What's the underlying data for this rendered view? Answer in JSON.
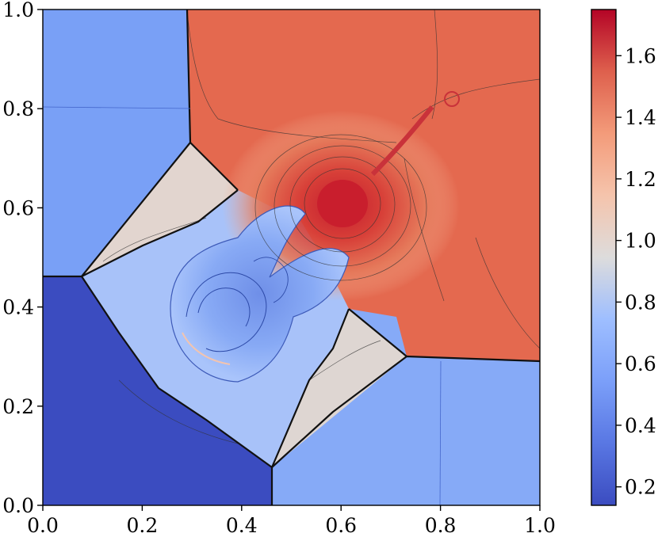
{
  "chart_data": {
    "type": "heatmap",
    "title": "",
    "xlabel": "",
    "ylabel": "",
    "xlim": [
      0.0,
      1.0
    ],
    "ylim": [
      0.0,
      1.0
    ],
    "x_ticks": [
      "0.0",
      "0.2",
      "0.4",
      "0.6",
      "0.8",
      "1.0"
    ],
    "y_ticks": [
      "0.0",
      "0.2",
      "0.4",
      "0.6",
      "0.8",
      "1.0"
    ],
    "colormap": "coolwarm",
    "colorbar": {
      "range": [
        0.14,
        1.75
      ],
      "ticks": [
        "0.2",
        "0.4",
        "0.6",
        "0.8",
        "1.0",
        "1.2",
        "1.4",
        "1.6"
      ],
      "position": "right"
    },
    "regions": [
      {
        "name": "upper-right state",
        "value": 1.45
      },
      {
        "name": "upper-left state",
        "value": 0.62
      },
      {
        "name": "lower-left state",
        "value": 0.17
      },
      {
        "name": "lower-right state",
        "value": 0.62
      },
      {
        "name": "upper-left wedge",
        "value": 1.0
      },
      {
        "name": "lower-right wedge",
        "value": 1.0
      },
      {
        "name": "central mushroom region",
        "value": 0.55
      },
      {
        "name": "central peak",
        "value": 1.75
      }
    ],
    "grid": false
  }
}
